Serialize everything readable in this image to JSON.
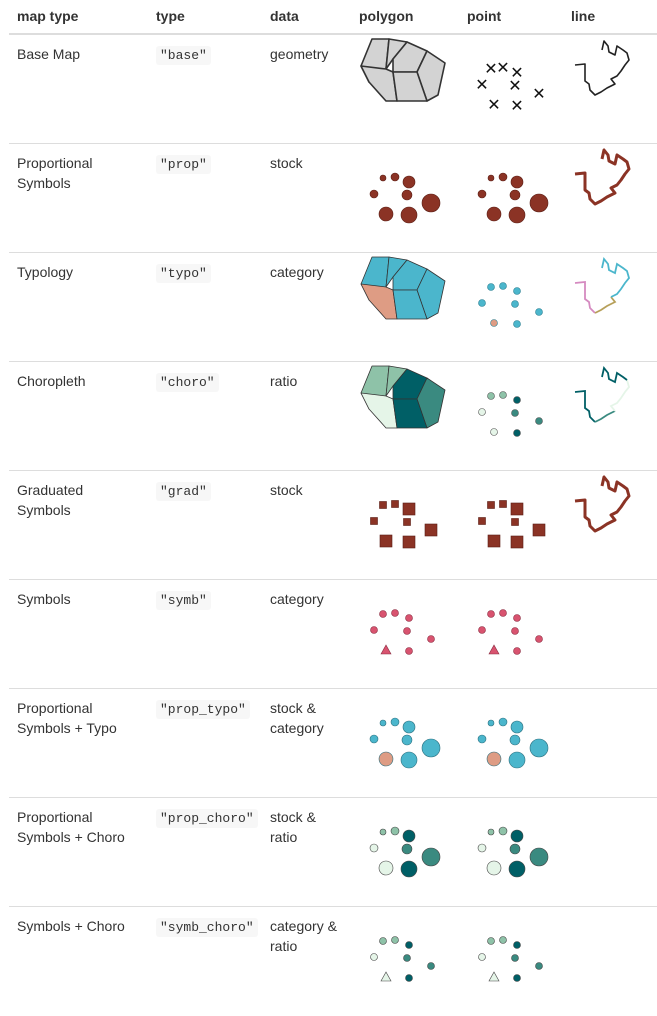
{
  "header": {
    "col_map_type": "map type",
    "col_type": "type",
    "col_data": "data",
    "col_polygon": "polygon",
    "col_point": "point",
    "col_line": "line"
  },
  "rows": [
    {
      "map_type": "Base Map",
      "type": "\"base\"",
      "data": "geometry",
      "has_line": true
    },
    {
      "map_type": "Proportional Symbols",
      "type": "\"prop\"",
      "data": "stock",
      "has_line": true
    },
    {
      "map_type": "Typology",
      "type": "\"typo\"",
      "data": "category",
      "has_line": true
    },
    {
      "map_type": "Choropleth",
      "type": "\"choro\"",
      "data": "ratio",
      "has_line": true
    },
    {
      "map_type": "Graduated Symbols",
      "type": "\"grad\"",
      "data": "stock",
      "has_line": true
    },
    {
      "map_type": "Symbols",
      "type": "\"symb\"",
      "data": "category",
      "has_line": false
    },
    {
      "map_type": "Proportional Symbols + Typo",
      "type": "\"prop_typo\"",
      "data": "stock & category",
      "has_line": false
    },
    {
      "map_type": "Proportional Symbols + Choro",
      "type": "\"prop_choro\"",
      "data": "stock & ratio",
      "has_line": false
    },
    {
      "map_type": "Symbols + Choro",
      "type": "\"symb_choro\"",
      "data": "category & ratio",
      "has_line": false
    }
  ],
  "colors": {
    "stock": "#8b3325",
    "typo_blue": "#4bb6cc",
    "typo_salmon": "#de9c84",
    "choro_dark": "#005f66",
    "choro_mid": "#3a8a80",
    "choro_light": "#8ec2a8",
    "choro_pale": "#e5f5e8",
    "symb_pink": "#d8536f",
    "base_fill": "#d3d3d3",
    "outline": "#333333"
  }
}
